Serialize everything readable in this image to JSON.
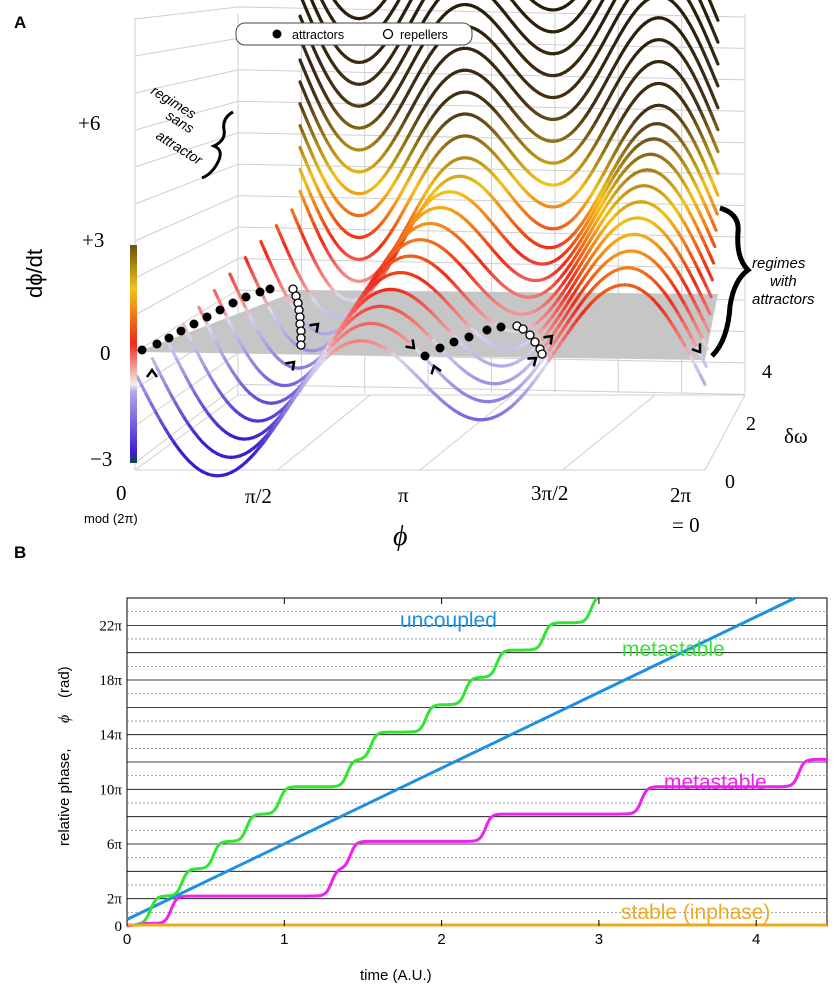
{
  "panel_a": {
    "letter": "A",
    "legend": {
      "attractors": "attractors",
      "repellers": "repellers"
    },
    "yaxis_label": "dϕ/dt",
    "yticks": [
      "+6",
      "+3",
      "0",
      "−3"
    ],
    "xticks": [
      "0",
      "π/2",
      "π",
      "3π/2",
      "2π"
    ],
    "x_mod_note": "mod (2π)",
    "x_equals_zero": "= 0",
    "xaxis_label": "ϕ",
    "zaxis_label": "δω",
    "zticks": [
      "0",
      "2",
      "4"
    ],
    "annot_sans": [
      "regimes",
      "sans",
      "attractor"
    ],
    "annot_with": [
      "regimes",
      "with",
      "attractors"
    ],
    "colors": {
      "low": "#3a1fd0",
      "zero": "#d9d9ec",
      "mid": "#ee2a1a",
      "high": "#f3c21a",
      "top": "#3a2a10",
      "sheet": "#c6c6c6"
    }
  },
  "chart_data": {
    "letter": "B",
    "type": "line",
    "xlabel": "time   (A.U.)",
    "ylabel": "relative phase,",
    "ylabel_symbol": "ϕ",
    "ylabel_unit": "(rad)",
    "xlim": [
      0,
      4.45
    ],
    "ylim": [
      0,
      75.4
    ],
    "xticks": [
      0,
      1,
      2,
      3,
      4
    ],
    "yticks": [
      {
        "value": 0,
        "label": "0"
      },
      {
        "value": 6.283,
        "label": "2π"
      },
      {
        "value": 18.85,
        "label": "6π"
      },
      {
        "value": 31.42,
        "label": "10π"
      },
      {
        "value": 43.98,
        "label": "14π"
      },
      {
        "value": 56.55,
        "label": "18π"
      },
      {
        "value": 69.12,
        "label": "22π"
      }
    ],
    "series": [
      {
        "name": "uncoupled",
        "color": "#1e90e0",
        "kind": "linear",
        "slope": 17.4,
        "intercept": 1.5
      },
      {
        "name": "metastable",
        "color": "#33e433",
        "kind": "steps",
        "step_times": [
          0.15,
          0.35,
          0.55,
          0.76,
          0.97,
          1.4,
          1.55,
          1.9,
          2.15,
          2.35,
          2.65,
          2.95,
          3.15,
          3.45,
          3.75,
          3.95,
          4.25
        ]
      },
      {
        "name": "metastable",
        "color": "#ee22ee",
        "kind": "steps",
        "step_times": [
          0.28,
          1.3,
          1.42,
          2.28,
          3.27,
          4.27
        ]
      },
      {
        "name": "stable (inphase)",
        "color": "#f0a81e",
        "kind": "constant",
        "value": 0
      }
    ]
  }
}
